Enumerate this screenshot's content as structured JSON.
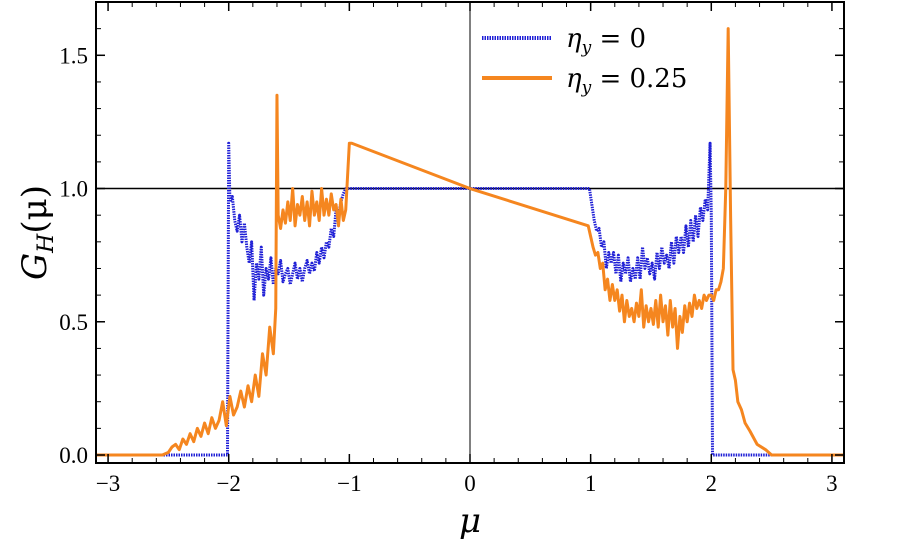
{
  "chart_data": {
    "type": "line",
    "xlabel_main": "μ",
    "ylabel_main": "G",
    "ylabel_sub": "H",
    "ylabel_tail": "(μ)",
    "xlim": [
      -3.1,
      3.1
    ],
    "ylim": [
      -0.03,
      1.7
    ],
    "xticks": [
      -3,
      -2,
      -1,
      0,
      1,
      2,
      3
    ],
    "xtick_labels": [
      "−3",
      "−2",
      "−1",
      "0",
      "1",
      "2",
      "3"
    ],
    "yticks": [
      0,
      0.5,
      1.0,
      1.5
    ],
    "ytick_labels": [
      "0.0",
      "0.5",
      "1.0",
      "1.5"
    ],
    "reference_lines": {
      "horizontal_y": 1.0,
      "vertical_x": 0
    },
    "legend_position": "top-right",
    "series": [
      {
        "name": "η_y = 0",
        "legend_main": "η",
        "legend_sub": "y",
        "legend_value": " = 0",
        "color": "#1f1fd6",
        "style": "dotted",
        "x": [
          -3.1,
          -2.03,
          -2.01,
          -2.0,
          -1.99,
          -1.97,
          -1.95,
          -1.93,
          -1.91,
          -1.89,
          -1.87,
          -1.85,
          -1.83,
          -1.81,
          -1.79,
          -1.77,
          -1.75,
          -1.73,
          -1.71,
          -1.69,
          -1.67,
          -1.65,
          -1.63,
          -1.61,
          -1.59,
          -1.57,
          -1.55,
          -1.53,
          -1.51,
          -1.49,
          -1.47,
          -1.45,
          -1.43,
          -1.41,
          -1.39,
          -1.37,
          -1.35,
          -1.33,
          -1.31,
          -1.29,
          -1.27,
          -1.25,
          -1.23,
          -1.21,
          -1.19,
          -1.17,
          -1.15,
          -1.13,
          -1.11,
          -1.09,
          -1.07,
          -1.05,
          -1.03,
          -1.01,
          -0.99,
          0.99,
          1.01,
          1.03,
          1.05,
          1.07,
          1.09,
          1.11,
          1.13,
          1.15,
          1.17,
          1.19,
          1.21,
          1.23,
          1.25,
          1.27,
          1.29,
          1.31,
          1.33,
          1.35,
          1.37,
          1.39,
          1.41,
          1.43,
          1.45,
          1.47,
          1.49,
          1.51,
          1.53,
          1.55,
          1.57,
          1.59,
          1.61,
          1.63,
          1.65,
          1.67,
          1.69,
          1.71,
          1.73,
          1.75,
          1.77,
          1.79,
          1.81,
          1.83,
          1.85,
          1.87,
          1.89,
          1.91,
          1.93,
          1.95,
          1.97,
          1.99,
          2.0,
          2.01,
          2.03,
          3.1
        ],
        "y": [
          0.0,
          0.0,
          0.0,
          1.17,
          0.95,
          0.97,
          0.88,
          0.84,
          0.9,
          0.8,
          0.87,
          0.78,
          0.72,
          0.8,
          0.58,
          0.72,
          0.66,
          0.78,
          0.6,
          0.7,
          0.66,
          0.74,
          0.64,
          0.7,
          0.68,
          0.73,
          0.65,
          0.68,
          0.7,
          0.64,
          0.68,
          0.72,
          0.66,
          0.7,
          0.65,
          0.7,
          0.73,
          0.68,
          0.72,
          0.69,
          0.76,
          0.72,
          0.78,
          0.74,
          0.8,
          0.78,
          0.85,
          0.82,
          0.92,
          0.9,
          0.95,
          0.98,
          1.0,
          1.0,
          1.0,
          1.0,
          0.94,
          0.88,
          0.84,
          0.85,
          0.78,
          0.8,
          0.7,
          0.76,
          0.72,
          0.76,
          0.68,
          0.75,
          0.65,
          0.72,
          0.68,
          0.74,
          0.65,
          0.7,
          0.66,
          0.74,
          0.66,
          0.78,
          0.7,
          0.74,
          0.68,
          0.72,
          0.66,
          0.76,
          0.7,
          0.78,
          0.72,
          0.75,
          0.7,
          0.8,
          0.72,
          0.82,
          0.76,
          0.82,
          0.76,
          0.86,
          0.78,
          0.88,
          0.8,
          0.9,
          0.82,
          0.93,
          0.88,
          0.96,
          0.92,
          1.17,
          0.9,
          0.0,
          0.0,
          0.0
        ]
      },
      {
        "name": "η_y = 0.25",
        "legend_main": "η",
        "legend_sub": "y",
        "legend_value": " = 0.25",
        "color": "#f5861f",
        "style": "solid",
        "x": [
          -3.1,
          -2.55,
          -2.5,
          -2.47,
          -2.44,
          -2.41,
          -2.38,
          -2.35,
          -2.32,
          -2.29,
          -2.26,
          -2.23,
          -2.2,
          -2.17,
          -2.14,
          -2.11,
          -2.08,
          -2.05,
          -2.02,
          -1.99,
          -1.96,
          -1.93,
          -1.9,
          -1.87,
          -1.84,
          -1.81,
          -1.78,
          -1.75,
          -1.72,
          -1.69,
          -1.66,
          -1.63,
          -1.61,
          -1.6,
          -1.59,
          -1.57,
          -1.55,
          -1.53,
          -1.51,
          -1.49,
          -1.47,
          -1.45,
          -1.43,
          -1.41,
          -1.39,
          -1.37,
          -1.35,
          -1.33,
          -1.31,
          -1.29,
          -1.27,
          -1.25,
          -1.23,
          -1.21,
          -1.19,
          -1.17,
          -1.15,
          -1.13,
          -1.11,
          -1.09,
          -1.07,
          -1.05,
          -1.03,
          -1.0,
          -0.98,
          0.0,
          0.98,
          1.0,
          1.02,
          1.04,
          1.06,
          1.08,
          1.1,
          1.12,
          1.14,
          1.16,
          1.18,
          1.2,
          1.22,
          1.24,
          1.26,
          1.28,
          1.3,
          1.32,
          1.34,
          1.36,
          1.38,
          1.4,
          1.42,
          1.44,
          1.46,
          1.48,
          1.5,
          1.52,
          1.54,
          1.56,
          1.58,
          1.6,
          1.62,
          1.64,
          1.66,
          1.68,
          1.7,
          1.72,
          1.74,
          1.76,
          1.78,
          1.8,
          1.82,
          1.84,
          1.86,
          1.88,
          1.9,
          1.92,
          1.94,
          1.96,
          1.98,
          2.0,
          2.02,
          2.04,
          2.06,
          2.08,
          2.1,
          2.12,
          2.14,
          2.16,
          2.18,
          2.2,
          2.22,
          2.25,
          2.28,
          2.32,
          2.38,
          2.45,
          2.5,
          2.55,
          3.1
        ],
        "y": [
          0.0,
          0.0,
          0.01,
          0.03,
          0.04,
          0.02,
          0.06,
          0.04,
          0.08,
          0.05,
          0.1,
          0.07,
          0.12,
          0.08,
          0.14,
          0.1,
          0.13,
          0.2,
          0.11,
          0.22,
          0.15,
          0.18,
          0.24,
          0.18,
          0.26,
          0.2,
          0.3,
          0.22,
          0.38,
          0.3,
          0.48,
          0.38,
          0.55,
          1.35,
          0.9,
          0.85,
          0.92,
          0.87,
          0.95,
          0.88,
          1.0,
          0.86,
          0.94,
          0.9,
          0.97,
          0.88,
          0.95,
          0.86,
          0.99,
          0.9,
          0.95,
          0.88,
          1.0,
          0.9,
          0.96,
          0.9,
          0.98,
          0.92,
          0.94,
          0.86,
          0.96,
          0.88,
          0.92,
          1.17,
          1.17,
          1.0,
          0.86,
          0.82,
          0.78,
          0.75,
          0.76,
          0.7,
          0.72,
          0.62,
          0.66,
          0.58,
          0.64,
          0.58,
          0.62,
          0.54,
          0.6,
          0.5,
          0.58,
          0.52,
          0.55,
          0.5,
          0.57,
          0.52,
          0.62,
          0.48,
          0.56,
          0.5,
          0.55,
          0.49,
          0.58,
          0.48,
          0.6,
          0.5,
          0.56,
          0.45,
          0.58,
          0.48,
          0.55,
          0.4,
          0.52,
          0.46,
          0.56,
          0.5,
          0.57,
          0.52,
          0.6,
          0.55,
          0.58,
          0.55,
          0.6,
          0.58,
          0.6,
          0.6,
          0.58,
          0.62,
          0.62,
          0.65,
          0.7,
          1.0,
          1.6,
          0.9,
          0.32,
          0.28,
          0.2,
          0.17,
          0.12,
          0.09,
          0.04,
          0.02,
          0.0,
          0.0,
          0.0
        ]
      }
    ]
  }
}
